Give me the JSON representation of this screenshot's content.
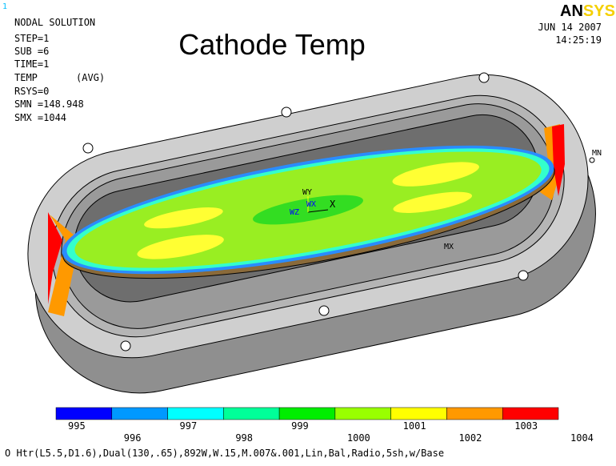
{
  "header": {
    "window_number": "1",
    "title": "Cathode Temp",
    "info": [
      "NODAL SOLUTION",
      "STEP=1",
      "SUB =6",
      "TIME=1",
      "TEMP",
      "(AVG)",
      "RSYS=0",
      "SMN =148.948",
      "SMX =1044"
    ],
    "date": "JUN 14 2007",
    "time": "14:25:19",
    "logo": [
      "AN",
      "SYS"
    ]
  },
  "annotations": {
    "wy": "WY",
    "wx": "WX",
    "wz": "WZ",
    "x": "X",
    "mn": "MN",
    "mx": "MX"
  },
  "legend": {
    "colors": [
      "#0000ff",
      "#0099ff",
      "#00ffff",
      "#00ff99",
      "#00ee00",
      "#99ff00",
      "#ffff00",
      "#ff9900",
      "#ff0000"
    ],
    "labels": [
      "995",
      "996",
      "997",
      "998",
      "999",
      "1000",
      "1001",
      "1002",
      "1003",
      "1004"
    ]
  },
  "footer": "O Htr(L5.5,D1.6),Dual(130,.65),892W,W.15,M.007&.001,Lin,Bal,Radio,5sh,w/Base"
}
